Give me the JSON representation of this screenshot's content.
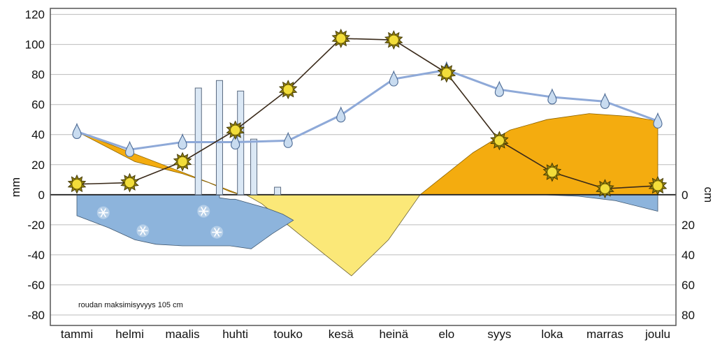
{
  "chart_data": {
    "type": "line",
    "categories": [
      "tammi",
      "helmi",
      "maalis",
      "huhti",
      "touko",
      "kesä",
      "heinä",
      "elo",
      "syys",
      "loka",
      "marras",
      "joulu"
    ],
    "left_axis": {
      "label": "mm",
      "ticks": [
        "120",
        "100",
        "80",
        "60",
        "40",
        "20",
        "0",
        "-20",
        "-40",
        "-60",
        "-80"
      ],
      "ylim": [
        -87,
        124
      ]
    },
    "right_axis": {
      "label": "cm",
      "ticks": [
        "0",
        "20",
        "40",
        "60",
        "80"
      ]
    },
    "grid": true,
    "series": [
      {
        "symbol": "sun",
        "values": [
          7,
          8,
          22,
          43,
          70,
          104,
          103,
          81,
          36,
          15,
          4,
          6
        ]
      },
      {
        "symbol": "drop",
        "values": [
          42,
          30,
          35,
          35,
          36,
          53,
          77,
          83,
          70,
          65,
          62,
          49
        ]
      }
    ],
    "bars": {
      "x": [
        3.3,
        3.7,
        4.1,
        4.35,
        4.8
      ],
      "values": [
        71,
        76,
        69,
        37,
        5
      ]
    },
    "areas": {
      "orange_pos": [
        [
          [
            1,
            42
          ],
          [
            2.1,
            22
          ],
          [
            3,
            14
          ],
          [
            3.5,
            8
          ],
          [
            3.9,
            2
          ],
          [
            4.1,
            0
          ]
        ],
        [
          [
            7.5,
            0
          ],
          [
            8.5,
            28
          ],
          [
            9.2,
            43
          ],
          [
            9.9,
            50
          ],
          [
            10.7,
            54
          ],
          [
            11.5,
            52
          ],
          [
            12,
            49
          ],
          [
            12,
            0
          ]
        ]
      ],
      "blue_snow": [
        [
          [
            1,
            -14
          ],
          [
            1.6,
            -22
          ],
          [
            2.1,
            -30
          ],
          [
            2.5,
            -33
          ],
          [
            3,
            -34
          ],
          [
            3.4,
            -34
          ],
          [
            3.9,
            -34
          ],
          [
            4.3,
            -36
          ],
          [
            4.7,
            -26
          ],
          [
            5.1,
            -17
          ],
          [
            4.9,
            -13
          ],
          [
            4.6,
            -9
          ],
          [
            4.2,
            -5
          ],
          [
            4,
            -3
          ],
          [
            3.9,
            -3
          ],
          [
            3.7,
            -2
          ],
          [
            3.7,
            0
          ],
          [
            1,
            0
          ]
        ],
        [
          [
            9.8,
            0
          ],
          [
            10.5,
            -1
          ],
          [
            11.2,
            -4
          ],
          [
            12,
            -11
          ],
          [
            12,
            0
          ]
        ]
      ],
      "yellow_neg": [
        [
          [
            4.2,
            0
          ],
          [
            4.5,
            -6
          ],
          [
            5.2,
            -26
          ],
          [
            6.2,
            -54
          ],
          [
            6.9,
            -30
          ],
          [
            7.5,
            0
          ]
        ]
      ],
      "snowflakes": [
        [
          1.5,
          -12
        ],
        [
          2.25,
          -24
        ],
        [
          3.4,
          -11
        ],
        [
          3.65,
          -25
        ]
      ]
    },
    "annotation": "roudan maksimisyvyys 105 cm",
    "colors": {
      "sun_line": "#3a2a1a",
      "rain_line": "#8ea9d8",
      "orange_area": "#f4ac0f",
      "blue_area": "#8db4dc",
      "yellow_area": "#fbe878",
      "bar_fill": "#dbe8f5",
      "grid": "#bbbbbb"
    }
  }
}
